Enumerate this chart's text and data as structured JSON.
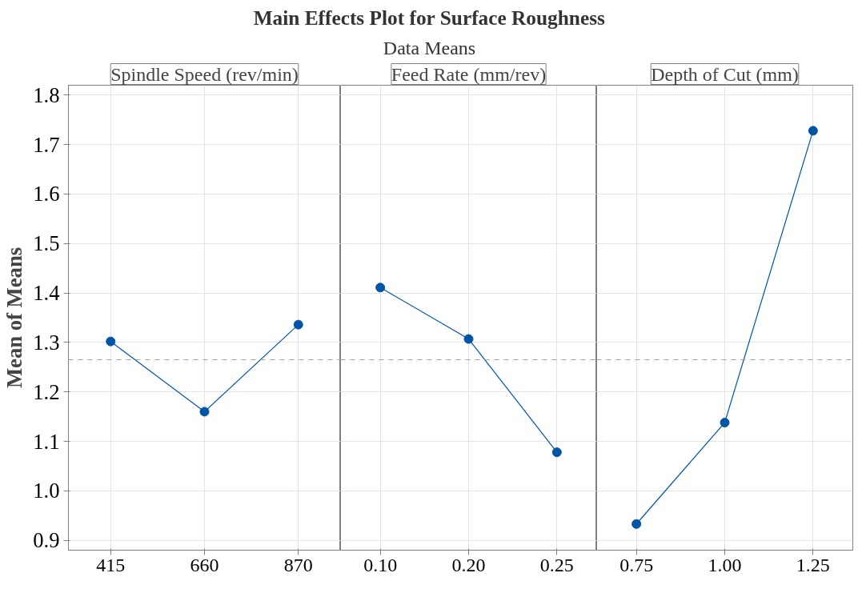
{
  "chart_data": [
    {
      "type": "line",
      "title": "Main Effects Plot for Surface Roughness",
      "ylabel": "Mean of Means",
      "xlabel": "Spindle Speed (rev/min)",
      "categories": [
        "415",
        "660",
        "870"
      ],
      "series": [
        {
          "color": "#0054a6",
          "values": [
            1.302,
            1.16,
            1.336
          ]
        }
      ],
      "ylim": [
        0.88,
        1.82
      ],
      "yticks": [
        0.9,
        {
          "value": 1.0,
          "label": "1.0"
        },
        1.1,
        1.2,
        1.3,
        1.4,
        1.5,
        1.6,
        1.7,
        1.8
      ],
      "grid": true,
      "marker": "circle",
      "line_style": "solid",
      "ref_lines": [
        {
          "axis": "y",
          "value": 1.265,
          "color": "#a0a0a0",
          "line_style": "dashed"
        }
      ]
    },
    {
      "type": "line",
      "subtitle": "Data Means",
      "xlabel": "Feed Rate (mm/rev)",
      "categories": [
        "0.10",
        "0.20",
        "0.25"
      ],
      "series": [
        {
          "color": "#0054a6",
          "values": [
            1.411,
            1.307,
            1.078
          ]
        }
      ],
      "ylim": [
        0.88,
        1.82
      ],
      "yticks": [
        0.9,
        1.0,
        1.1,
        1.2,
        1.3,
        1.4,
        1.5,
        1.6,
        1.7,
        1.8
      ],
      "tick_labels": "x",
      "grid": true,
      "marker": "circle",
      "line_style": "solid",
      "ref_lines": [
        {
          "axis": "y",
          "value": 1.265,
          "color": "#a0a0a0",
          "line_style": "dashed"
        }
      ]
    },
    {
      "type": "line",
      "xlabel": "Depth of Cut (mm)",
      "categories": [
        "0.75",
        "1.00",
        "1.25"
      ],
      "series": [
        {
          "color": "#0054a6",
          "values": [
            0.933,
            1.138,
            1.728
          ]
        }
      ],
      "ylim": [
        0.88,
        1.82
      ],
      "yticks": [
        0.9,
        1.0,
        1.1,
        1.2,
        1.3,
        1.4,
        1.5,
        1.6,
        1.7,
        1.8
      ],
      "tick_labels": "x",
      "grid": true,
      "marker": "circle",
      "line_style": "solid",
      "ref_lines": [
        {
          "axis": "y",
          "value": 1.265,
          "color": "#a0a0a0",
          "line_style": "dashed"
        }
      ]
    }
  ]
}
